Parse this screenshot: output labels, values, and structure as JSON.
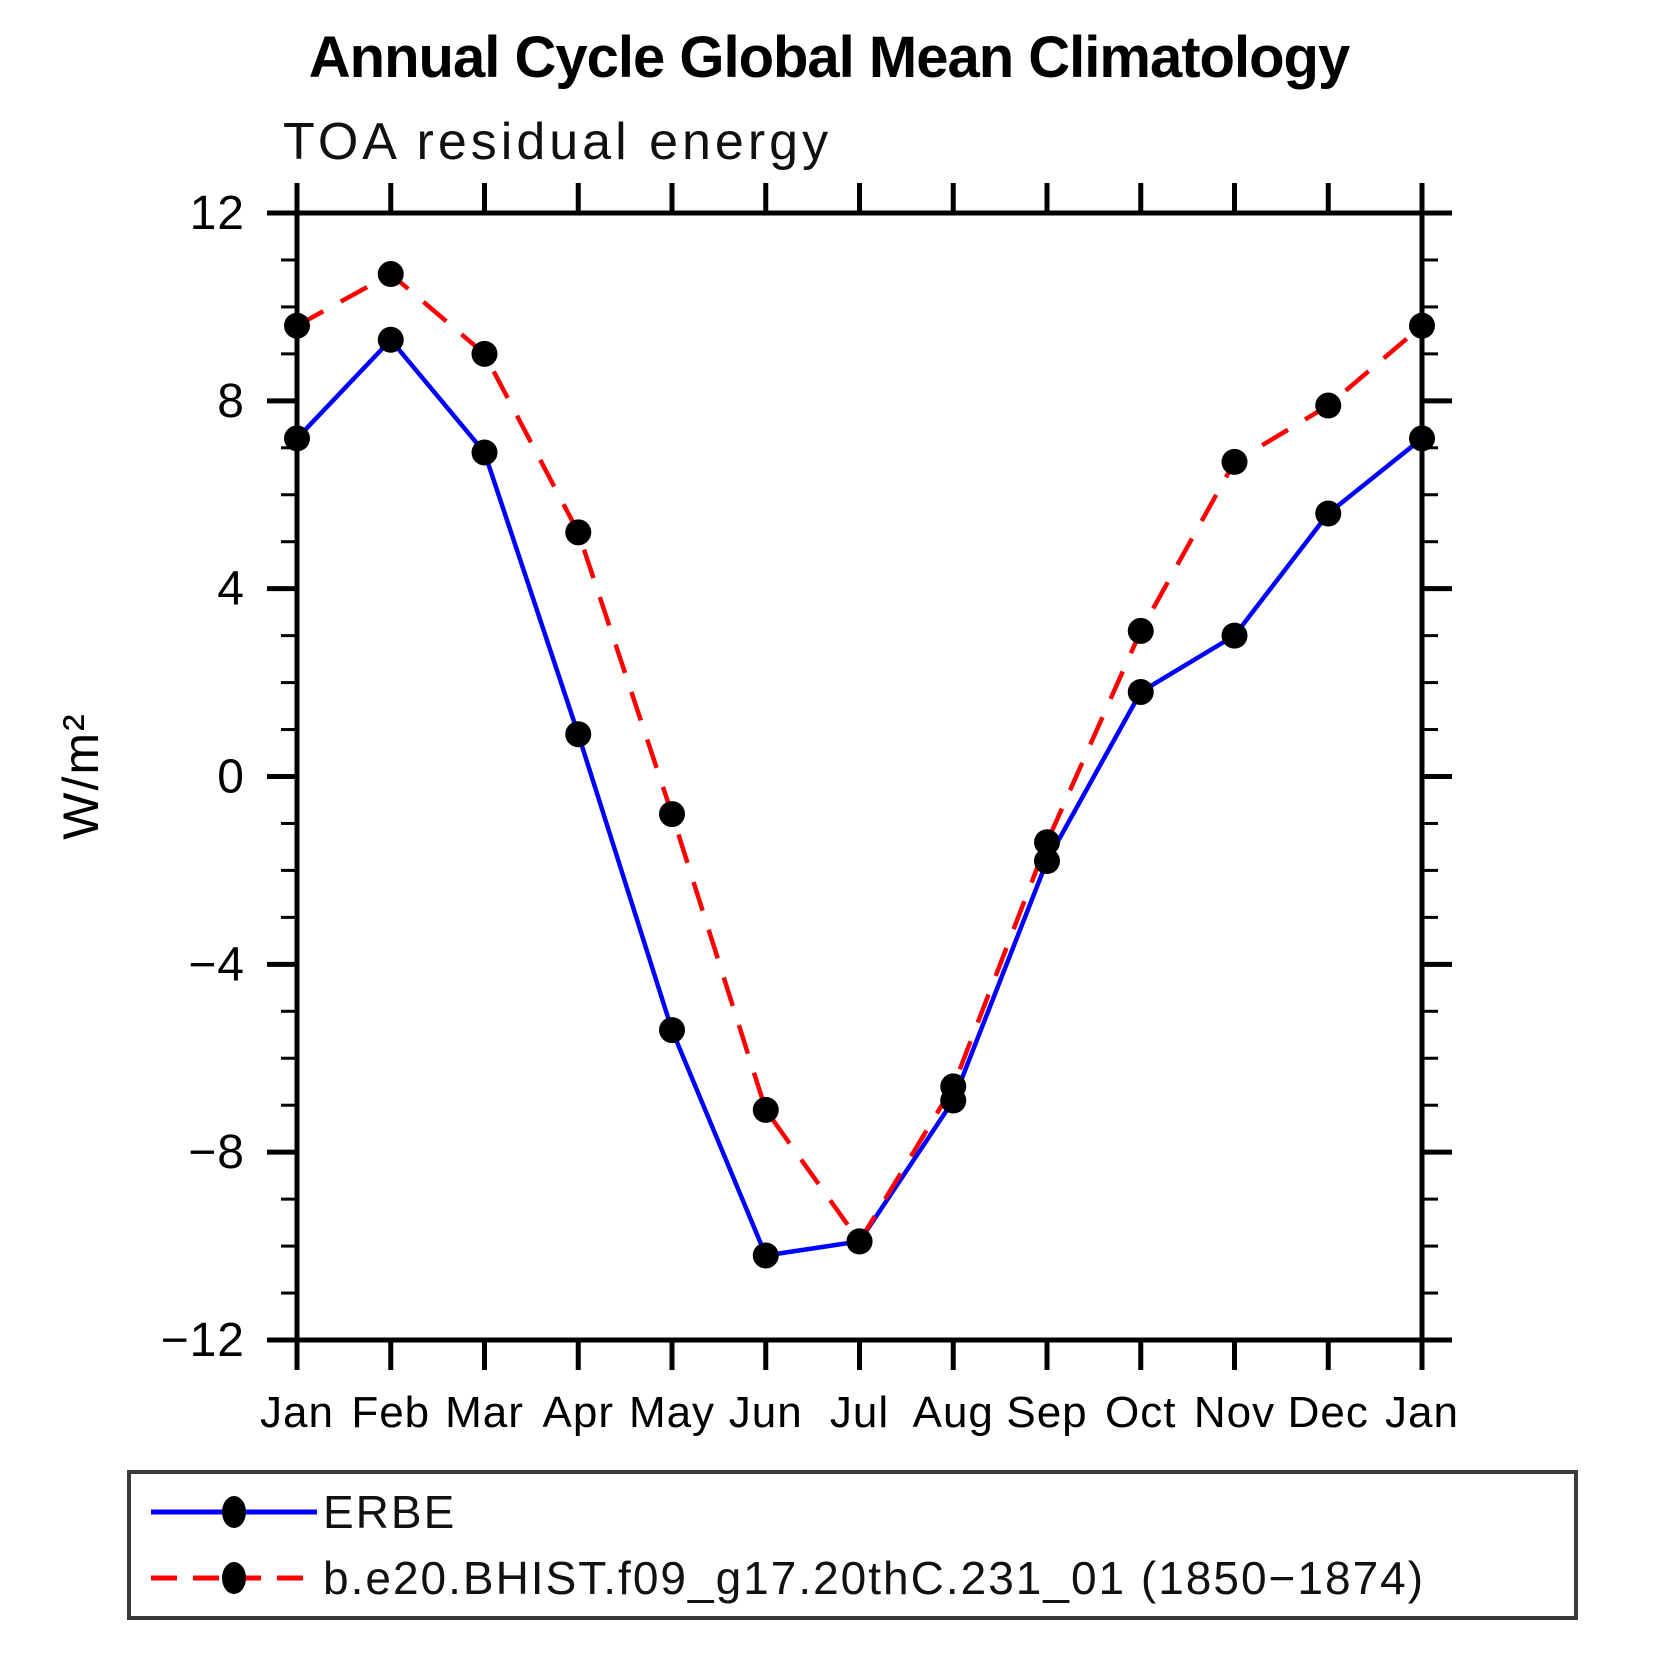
{
  "chart_data": {
    "type": "line",
    "title": "Annual Cycle Global Mean Climatology",
    "subtitle": "TOA residual energy",
    "ylabel": "W/m²",
    "xlabel": "",
    "x_categories": [
      "Jan",
      "Feb",
      "Mar",
      "Apr",
      "May",
      "Jun",
      "Jul",
      "Aug",
      "Sep",
      "Oct",
      "Nov",
      "Dec",
      "Jan"
    ],
    "ylim": [
      -12,
      12
    ],
    "ytick_values": [
      12,
      8,
      4,
      0,
      -4,
      -8,
      -12
    ],
    "ytick_labels": [
      "12",
      "8",
      "4",
      "0",
      "−4",
      "−8",
      "−12"
    ],
    "ytick_minor_step": 1,
    "grid": false,
    "legend_position": "bottom",
    "marker_color": "#000000",
    "series": [
      {
        "name": "ERBE",
        "color": "#0000ff",
        "line": "solid",
        "marker": "filled-circle",
        "values": [
          7.2,
          9.3,
          6.9,
          0.9,
          -5.4,
          -10.2,
          -9.9,
          -6.9,
          -1.8,
          1.8,
          3.0,
          5.6,
          7.2
        ]
      },
      {
        "name": "b.e20.BHIST.f09_g17.20thC.231_01 (1850−1874)",
        "color": "#ff0000",
        "line": "dashed",
        "marker": "filled-circle",
        "values": [
          9.6,
          10.7,
          9.0,
          5.2,
          -0.8,
          -7.1,
          -9.9,
          -6.6,
          -1.4,
          3.1,
          6.7,
          7.9,
          9.6
        ]
      }
    ]
  }
}
